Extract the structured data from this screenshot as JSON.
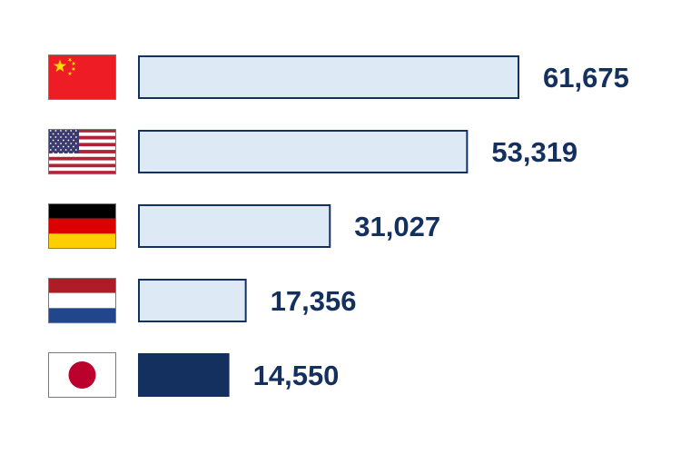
{
  "chart_data": {
    "type": "bar",
    "orientation": "horizontal",
    "categories": [
      "China",
      "United States",
      "Germany",
      "Netherlands",
      "Japan"
    ],
    "flags": [
      "china-flag-icon",
      "usa-flag-icon",
      "germany-flag-icon",
      "netherlands-flag-icon",
      "japan-flag-icon"
    ],
    "values": [
      61675,
      53319,
      31027,
      17356,
      14550
    ],
    "value_labels": [
      "61,675",
      "53,319",
      "31,027",
      "17,356",
      "14,550"
    ],
    "highlight": "Japan",
    "xlim": [
      0,
      61675
    ],
    "grid": false,
    "legend": "none",
    "colors": {
      "bar_fill": "#ddeaf6",
      "bar_stroke": "#14305e",
      "highlight_fill": "#14305e",
      "label": "#14305e"
    }
  }
}
